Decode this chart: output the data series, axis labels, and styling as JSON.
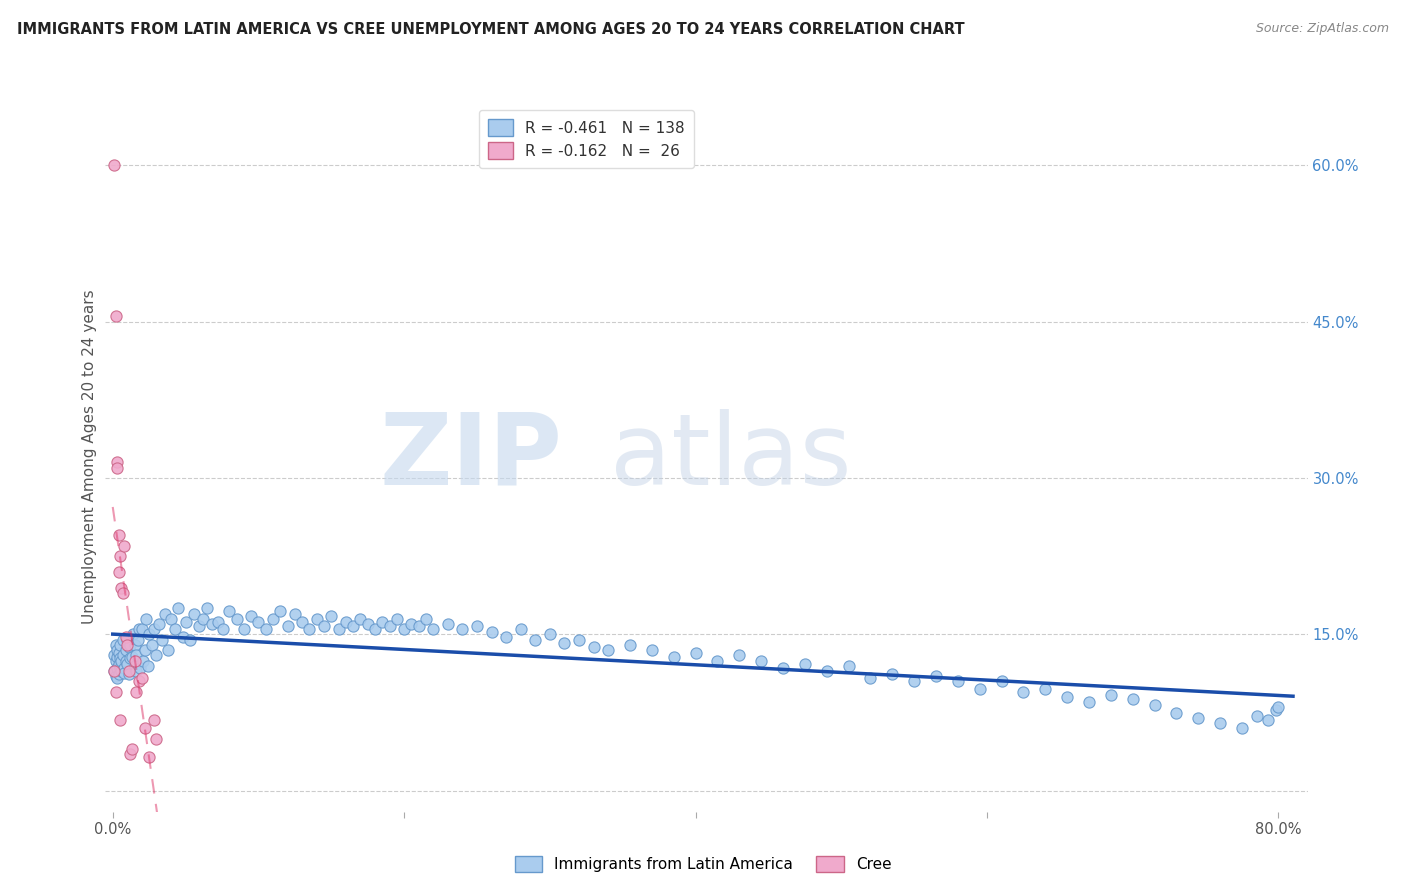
{
  "title": "IMMIGRANTS FROM LATIN AMERICA VS CREE UNEMPLOYMENT AMONG AGES 20 TO 24 YEARS CORRELATION CHART",
  "source": "Source: ZipAtlas.com",
  "ylabel": "Unemployment Among Ages 20 to 24 years",
  "xlim": [
    -0.005,
    0.82
  ],
  "ylim": [
    -0.02,
    0.66
  ],
  "xtick_vals": [
    0.0,
    0.2,
    0.4,
    0.6,
    0.8
  ],
  "xtick_labels": [
    "0.0%",
    "",
    "",
    "",
    "80.0%"
  ],
  "ytick_right_vals": [
    0.0,
    0.15,
    0.3,
    0.45,
    0.6
  ],
  "ytick_right_labels": [
    "",
    "15.0%",
    "30.0%",
    "45.0%",
    "60.0%"
  ],
  "series1_color": "#aaccee",
  "series1_edge": "#6699cc",
  "series2_color": "#f0aacc",
  "series2_edge": "#cc6688",
  "line1_color": "#1a4daa",
  "line2_color": "#dd3366",
  "background": "#ffffff",
  "grid_color": "#cccccc",
  "title_color": "#222222",
  "legend_r1": "-0.461",
  "legend_n1": "138",
  "legend_r2": "-0.162",
  "legend_n2": " 26",
  "series1_label": "Immigrants from Latin America",
  "series2_label": "Cree",
  "series1_x": [
    0.001,
    0.001,
    0.002,
    0.002,
    0.002,
    0.003,
    0.003,
    0.003,
    0.003,
    0.004,
    0.004,
    0.004,
    0.005,
    0.005,
    0.005,
    0.006,
    0.006,
    0.007,
    0.007,
    0.008,
    0.008,
    0.009,
    0.009,
    0.01,
    0.01,
    0.011,
    0.011,
    0.012,
    0.012,
    0.013,
    0.014,
    0.015,
    0.015,
    0.016,
    0.016,
    0.017,
    0.018,
    0.019,
    0.02,
    0.021,
    0.022,
    0.023,
    0.024,
    0.025,
    0.027,
    0.028,
    0.03,
    0.032,
    0.034,
    0.036,
    0.038,
    0.04,
    0.043,
    0.045,
    0.048,
    0.05,
    0.053,
    0.056,
    0.059,
    0.062,
    0.065,
    0.068,
    0.072,
    0.076,
    0.08,
    0.085,
    0.09,
    0.095,
    0.1,
    0.105,
    0.11,
    0.115,
    0.12,
    0.125,
    0.13,
    0.135,
    0.14,
    0.145,
    0.15,
    0.155,
    0.16,
    0.165,
    0.17,
    0.175,
    0.18,
    0.185,
    0.19,
    0.195,
    0.2,
    0.205,
    0.21,
    0.215,
    0.22,
    0.23,
    0.24,
    0.25,
    0.26,
    0.27,
    0.28,
    0.29,
    0.3,
    0.31,
    0.32,
    0.33,
    0.34,
    0.355,
    0.37,
    0.385,
    0.4,
    0.415,
    0.43,
    0.445,
    0.46,
    0.475,
    0.49,
    0.505,
    0.52,
    0.535,
    0.55,
    0.565,
    0.58,
    0.595,
    0.61,
    0.625,
    0.64,
    0.655,
    0.67,
    0.685,
    0.7,
    0.715,
    0.73,
    0.745,
    0.76,
    0.775,
    0.785,
    0.793,
    0.798,
    0.8
  ],
  "series1_y": [
    0.13,
    0.115,
    0.125,
    0.14,
    0.11,
    0.128,
    0.118,
    0.135,
    0.108,
    0.122,
    0.132,
    0.112,
    0.127,
    0.118,
    0.14,
    0.125,
    0.115,
    0.13,
    0.145,
    0.118,
    0.113,
    0.125,
    0.135,
    0.145,
    0.122,
    0.138,
    0.112,
    0.127,
    0.14,
    0.128,
    0.15,
    0.12,
    0.14,
    0.115,
    0.13,
    0.145,
    0.155,
    0.118,
    0.155,
    0.125,
    0.135,
    0.165,
    0.12,
    0.15,
    0.14,
    0.155,
    0.13,
    0.16,
    0.145,
    0.17,
    0.135,
    0.165,
    0.155,
    0.175,
    0.148,
    0.162,
    0.145,
    0.17,
    0.158,
    0.165,
    0.175,
    0.16,
    0.162,
    0.155,
    0.172,
    0.165,
    0.155,
    0.168,
    0.162,
    0.155,
    0.165,
    0.172,
    0.158,
    0.17,
    0.162,
    0.155,
    0.165,
    0.158,
    0.168,
    0.155,
    0.162,
    0.158,
    0.165,
    0.16,
    0.155,
    0.162,
    0.158,
    0.165,
    0.155,
    0.16,
    0.158,
    0.165,
    0.155,
    0.16,
    0.155,
    0.158,
    0.152,
    0.148,
    0.155,
    0.145,
    0.15,
    0.142,
    0.145,
    0.138,
    0.135,
    0.14,
    0.135,
    0.128,
    0.132,
    0.125,
    0.13,
    0.125,
    0.118,
    0.122,
    0.115,
    0.12,
    0.108,
    0.112,
    0.105,
    0.11,
    0.105,
    0.098,
    0.105,
    0.095,
    0.098,
    0.09,
    0.085,
    0.092,
    0.088,
    0.082,
    0.075,
    0.07,
    0.065,
    0.06,
    0.072,
    0.068,
    0.078,
    0.08
  ],
  "series2_x": [
    0.001,
    0.001,
    0.002,
    0.002,
    0.003,
    0.003,
    0.004,
    0.004,
    0.005,
    0.005,
    0.006,
    0.007,
    0.008,
    0.009,
    0.01,
    0.011,
    0.012,
    0.013,
    0.015,
    0.016,
    0.018,
    0.02,
    0.022,
    0.025,
    0.028,
    0.03
  ],
  "series2_y": [
    0.6,
    0.115,
    0.455,
    0.095,
    0.315,
    0.31,
    0.245,
    0.21,
    0.225,
    0.068,
    0.195,
    0.19,
    0.235,
    0.148,
    0.14,
    0.115,
    0.035,
    0.04,
    0.125,
    0.095,
    0.105,
    0.108,
    0.06,
    0.032,
    0.068,
    0.05
  ]
}
